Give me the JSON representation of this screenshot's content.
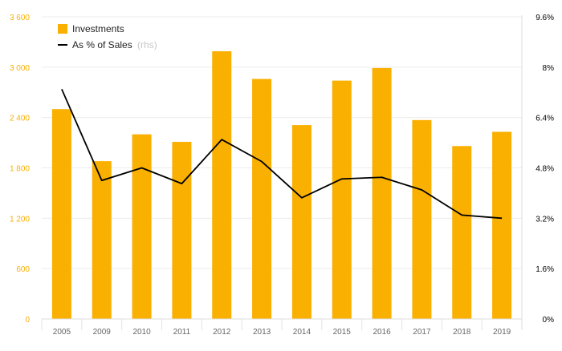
{
  "chart_data": {
    "type": "bar",
    "categories": [
      "2005",
      "2009",
      "2010",
      "2011",
      "2012",
      "2013",
      "2014",
      "2015",
      "2016",
      "2017",
      "2018",
      "2019"
    ],
    "series": [
      {
        "name": "Investments",
        "type": "bar",
        "axis": "left",
        "color": "#F9B000",
        "values": [
          2500,
          1880,
          2200,
          2110,
          3190,
          2860,
          2310,
          2840,
          2990,
          2370,
          2060,
          2230
        ]
      },
      {
        "name": "As % of Sales",
        "name_suffix": "(rhs)",
        "type": "line",
        "axis": "right",
        "color": "#000000",
        "values": [
          7.3,
          4.4,
          4.8,
          4.3,
          5.7,
          5.0,
          3.85,
          4.45,
          4.5,
          4.1,
          3.3,
          3.2
        ]
      }
    ],
    "y_left": {
      "min": 0,
      "max": 3600,
      "ticks": [
        0,
        600,
        1200,
        1800,
        2400,
        3000,
        3600
      ],
      "tick_labels": [
        "0",
        "600",
        "1 200",
        "1 800",
        "2 400",
        "3 000",
        "3 600"
      ],
      "label_color": "#F9B000"
    },
    "y_right": {
      "min": 0,
      "max": 9.6,
      "ticks": [
        0,
        1.6,
        3.2,
        4.8,
        6.4,
        8,
        9.6
      ],
      "tick_labels": [
        "0%",
        "1.6%",
        "3.2%",
        "4.8%",
        "6.4%",
        "8%",
        "9.6%"
      ],
      "label_color": "#000000"
    },
    "title": "",
    "xlabel": "",
    "ylabel": "",
    "grid": true,
    "legend": "top-left"
  }
}
